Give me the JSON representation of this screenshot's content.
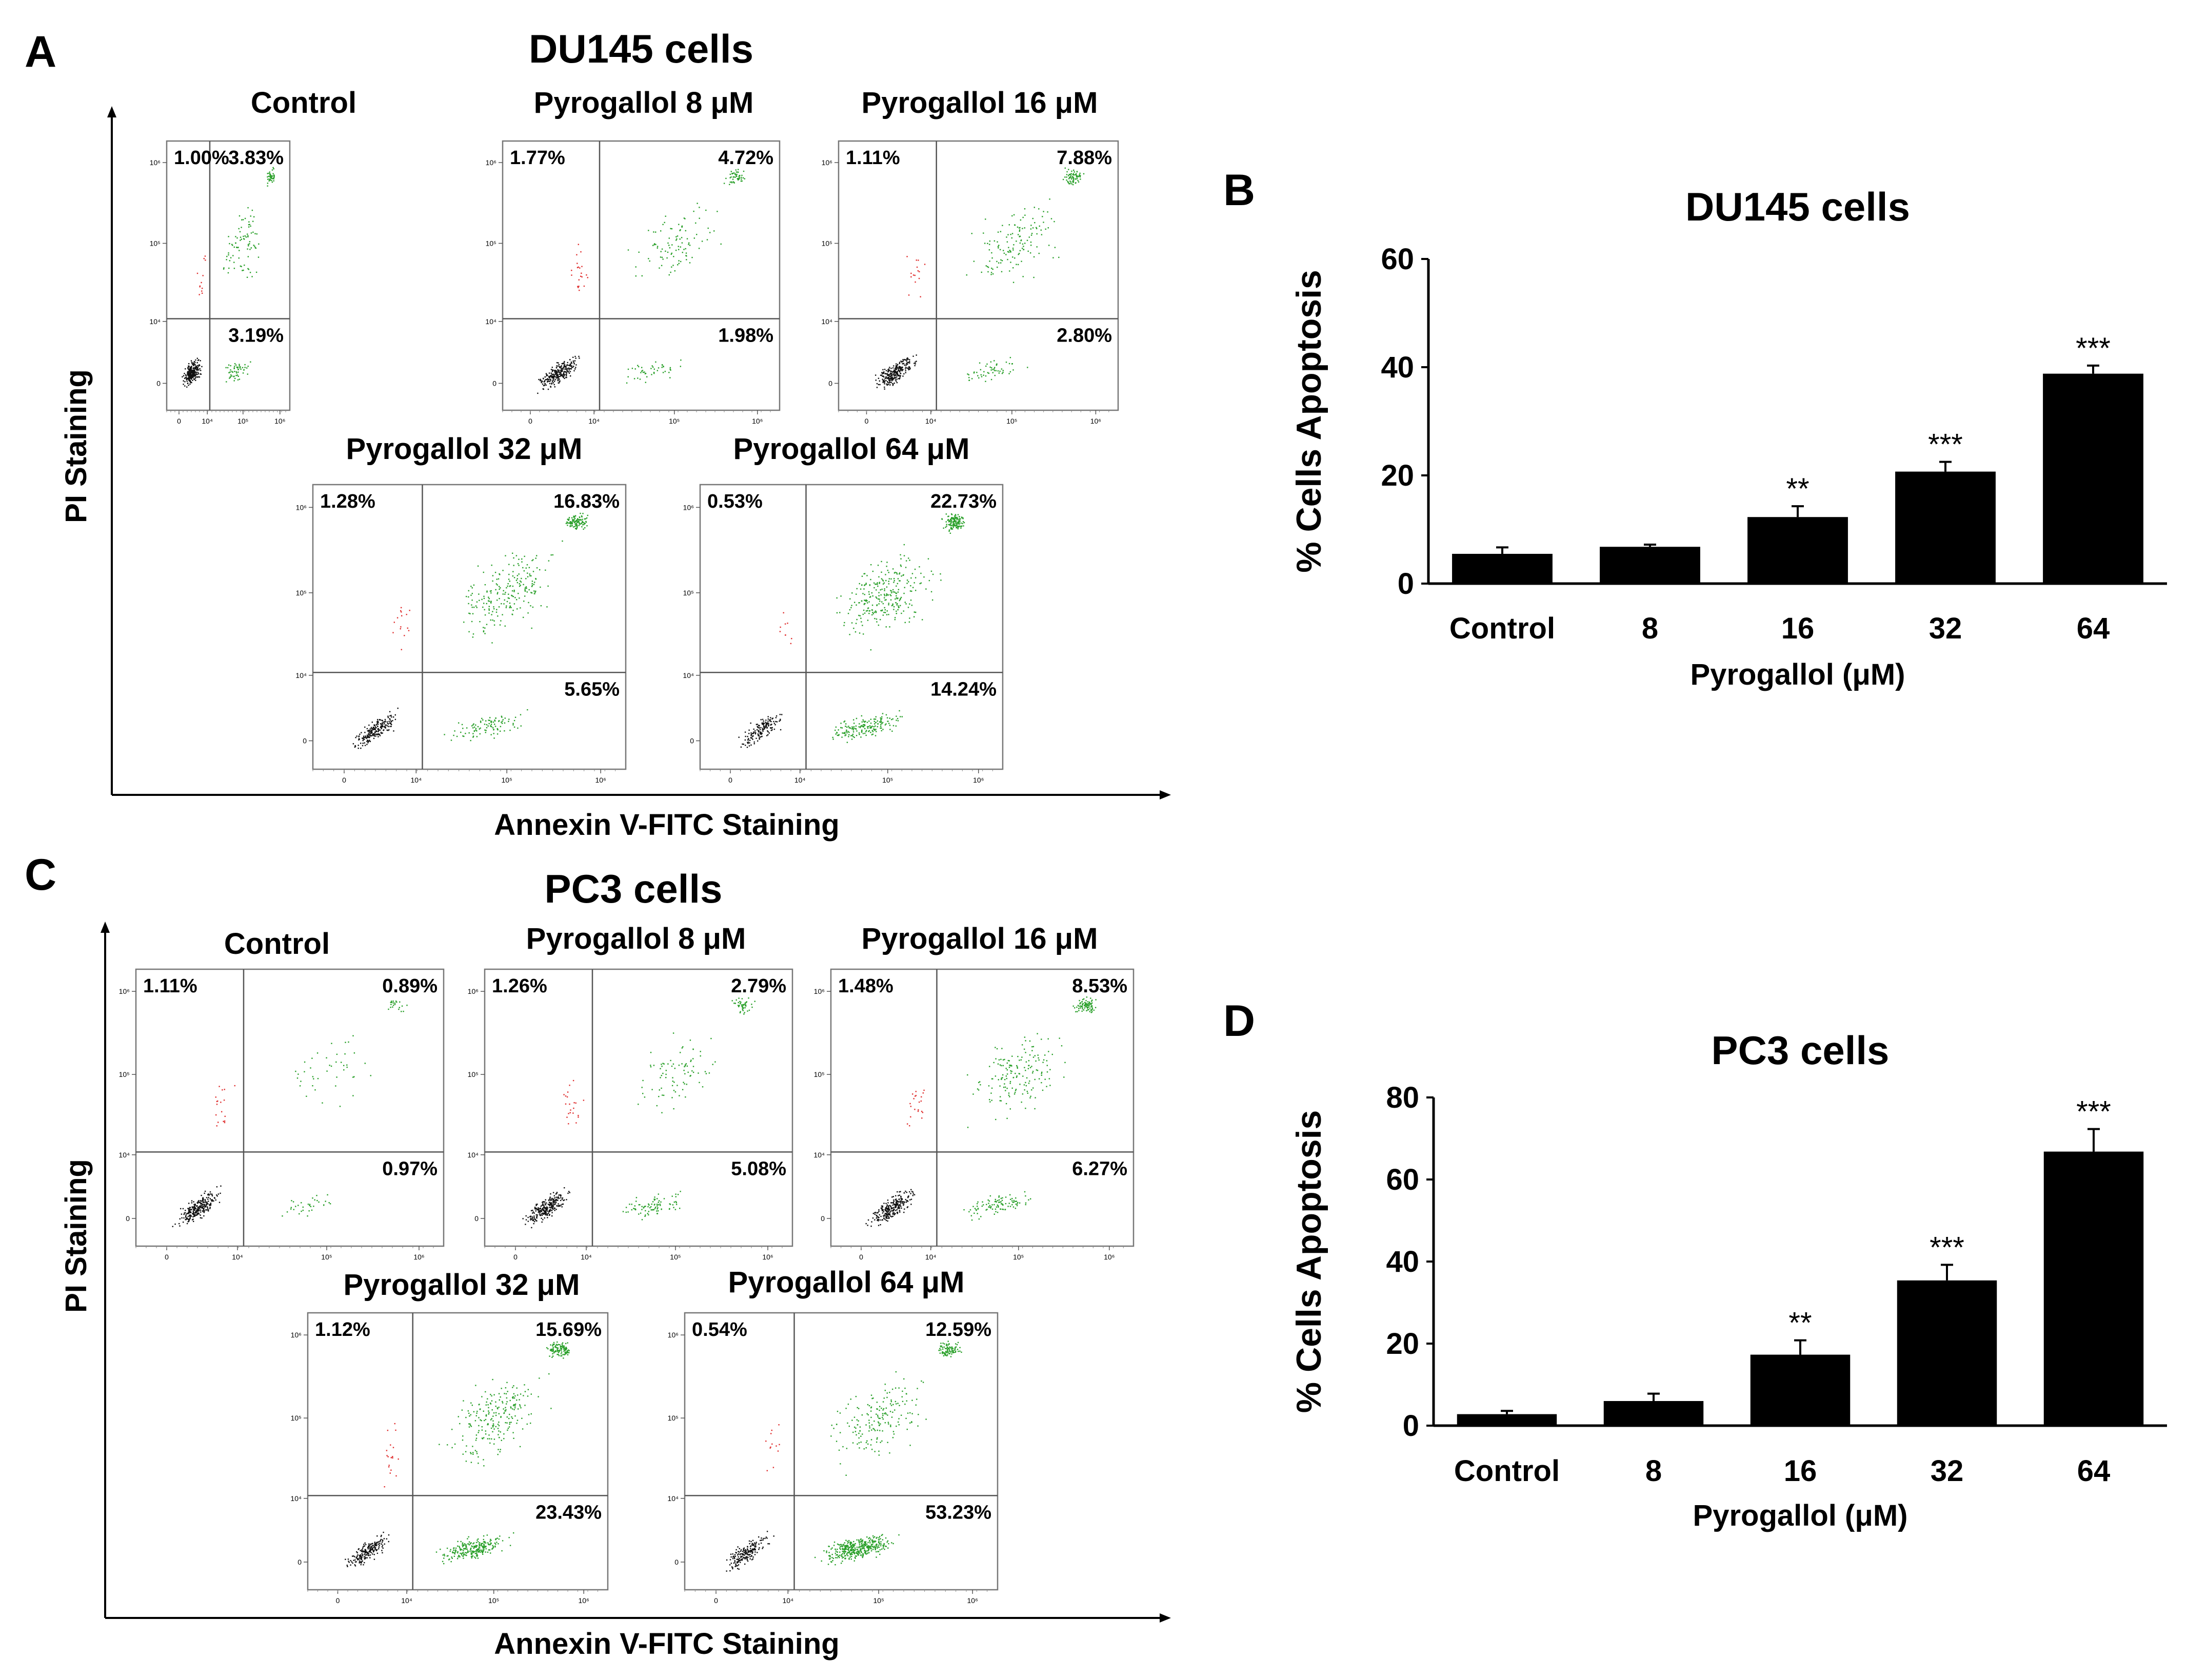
{
  "chart_data": [
    {
      "type": "scatter",
      "panel": "A",
      "title": "DU145 cells",
      "xlabel": "Annexin V-FITC Staining",
      "ylabel": "PI Staining",
      "axis_ticks": [
        "0",
        "10⁴",
        "10⁵",
        "10⁶"
      ],
      "plots": [
        {
          "title": "Control",
          "q1": "1.00%",
          "q2": "3.83%",
          "q4": "3.19%",
          "density": [
            1,
            0.2,
            0.6,
            0.5
          ]
        },
        {
          "title": "Pyrogallol 8 μM",
          "q1": "1.77%",
          "q2": "4.72%",
          "q4": "1.98%",
          "density": [
            1,
            0.35,
            0.7,
            0.4
          ]
        },
        {
          "title": "Pyrogallol 16 μM",
          "q1": "1.11%",
          "q2": "7.88%",
          "q4": "2.80%",
          "density": [
            1,
            0.25,
            1.0,
            0.5
          ]
        },
        {
          "title": "Pyrogallol 32 μM",
          "q1": "1.28%",
          "q2": "16.83%",
          "q4": "5.65%",
          "density": [
            0.8,
            0.25,
            1.6,
            0.9
          ]
        },
        {
          "title": "Pyrogallol 64 μM",
          "q1": "0.53%",
          "q2": "22.73%",
          "q4": "14.24%",
          "density": [
            0.6,
            0.15,
            2.0,
            1.6
          ]
        }
      ]
    },
    {
      "type": "bar",
      "panel": "B",
      "title": "DU145 cells",
      "categories": [
        "Control",
        "8",
        "16",
        "32",
        "64"
      ],
      "values": [
        5.5,
        6.8,
        12.3,
        20.7,
        38.8
      ],
      "errors": [
        1.2,
        0.4,
        2.0,
        1.8,
        1.5
      ],
      "significance": [
        "",
        "",
        "**",
        "***",
        "***"
      ],
      "xlabel": "Pyrogallol (μM)",
      "ylabel": "% Cells Apoptosis",
      "ylim": [
        0,
        60
      ],
      "yticks": [
        "0",
        "20",
        "40",
        "60"
      ]
    },
    {
      "type": "scatter",
      "panel": "C",
      "title": "PC3 cells",
      "xlabel": "Annexin V-FITC Staining",
      "ylabel": "PI Staining",
      "axis_ticks": [
        "0",
        "10⁴",
        "10⁵",
        "10⁶"
      ],
      "plots": [
        {
          "title": "Control",
          "q1": "1.11%",
          "q2": "0.89%",
          "q4": "0.97%",
          "density": [
            1,
            0.3,
            0.3,
            0.3
          ]
        },
        {
          "title": "Pyrogallol 8 μM",
          "q1": "1.26%",
          "q2": "2.79%",
          "q4": "5.08%",
          "density": [
            1,
            0.35,
            0.6,
            0.8
          ]
        },
        {
          "title": "Pyrogallol 16 μM",
          "q1": "1.48%",
          "q2": "8.53%",
          "q4": "6.27%",
          "density": [
            1,
            0.35,
            1.2,
            0.9
          ]
        },
        {
          "title": "Pyrogallol 32 μM",
          "q1": "1.12%",
          "q2": "15.69%",
          "q4": "23.43%",
          "density": [
            0.8,
            0.3,
            1.6,
            2.2
          ]
        },
        {
          "title": "Pyrogallol 64 μM",
          "q1": "0.54%",
          "q2": "12.59%",
          "q4": "53.23%",
          "density": [
            0.7,
            0.2,
            1.3,
            3.5
          ]
        }
      ]
    },
    {
      "type": "bar",
      "panel": "D",
      "title": "PC3 cells",
      "categories": [
        "Control",
        "8",
        "16",
        "32",
        "64"
      ],
      "values": [
        2.8,
        6.0,
        17.3,
        35.4,
        66.8
      ],
      "errors": [
        0.8,
        1.8,
        3.5,
        3.8,
        5.5
      ],
      "significance": [
        "",
        "",
        "**",
        "***",
        "***"
      ],
      "xlabel": "Pyrogallol (μM)",
      "ylabel": "% Cells Apoptosis",
      "ylim": [
        0,
        80
      ],
      "yticks": [
        "0",
        "20",
        "40",
        "60",
        "80"
      ]
    }
  ]
}
